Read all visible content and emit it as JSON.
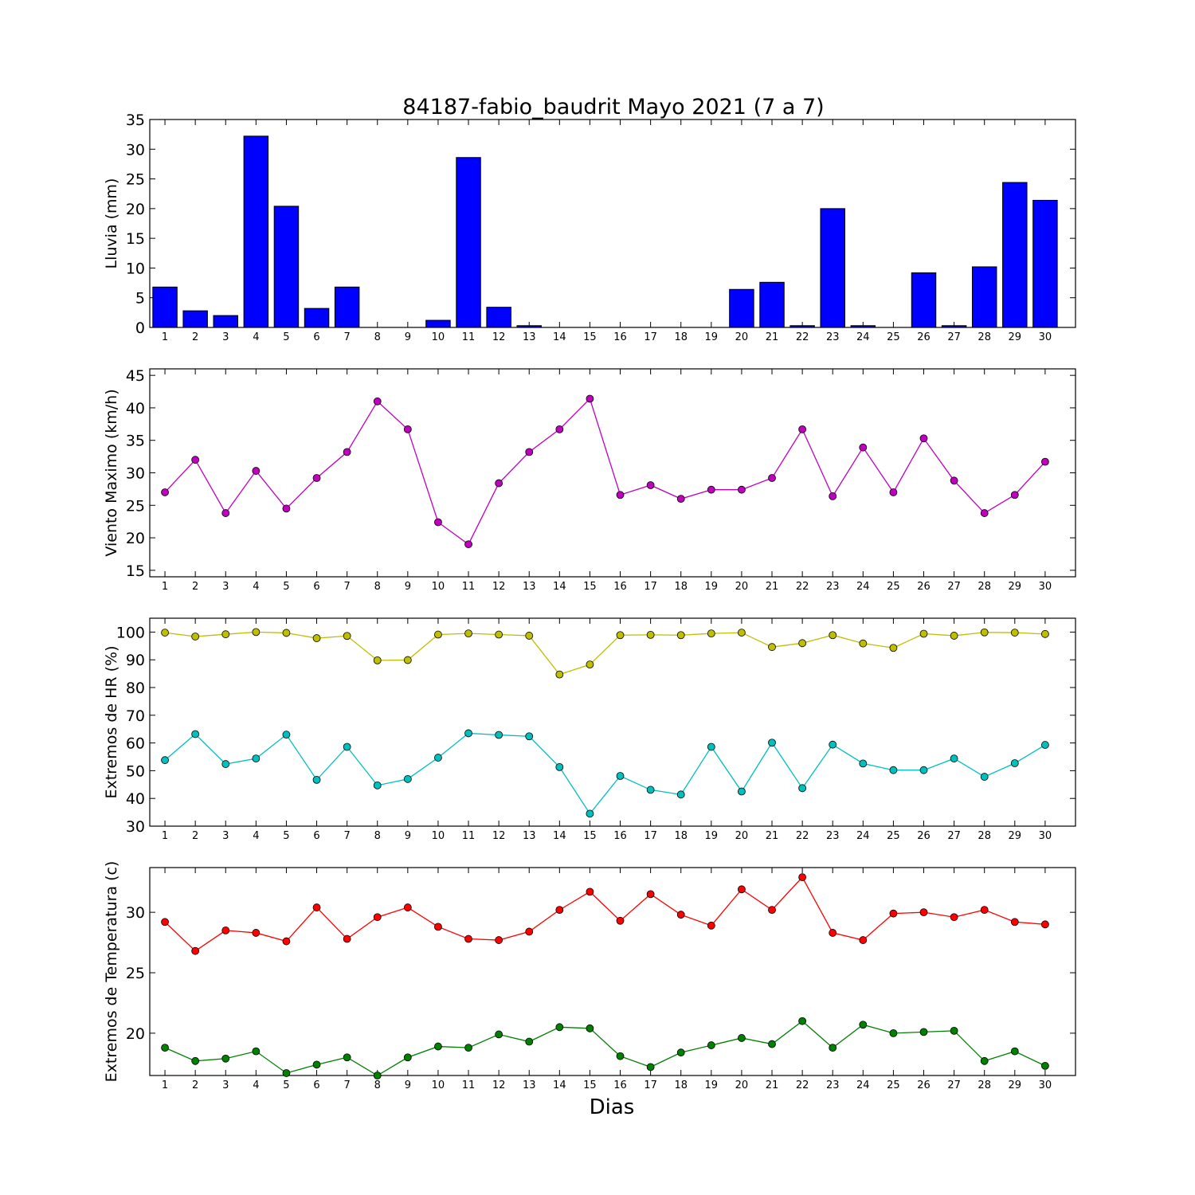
{
  "title": "84187-fabio_baudrit Mayo 2021  (7 a 7)",
  "xlabel": "Dias",
  "colors": {
    "rain": "#0000ff",
    "wind": "#bf00bf",
    "hr_max": "#bfbf00",
    "hr_min": "#00bfbf",
    "t_max": "#ff0000",
    "t_min": "#008000"
  },
  "chart_data": [
    {
      "type": "bar",
      "ylabel": "Lluvia (mm)",
      "ylim": [
        0,
        35
      ],
      "yticks": [
        0,
        5,
        10,
        15,
        20,
        25,
        30,
        35
      ],
      "categories": [
        "1",
        "2",
        "3",
        "4",
        "5",
        "6",
        "7",
        "8",
        "9",
        "10",
        "11",
        "12",
        "13",
        "14",
        "15",
        "16",
        "17",
        "18",
        "19",
        "20",
        "21",
        "22",
        "23",
        "24",
        "25",
        "26",
        "27",
        "28",
        "29",
        "30"
      ],
      "values": [
        6.8,
        2.8,
        2.0,
        32.2,
        20.4,
        3.2,
        6.8,
        0,
        0,
        1.2,
        28.6,
        3.4,
        0.3,
        0,
        0,
        0,
        0,
        0,
        0,
        6.4,
        7.6,
        0.3,
        20.0,
        0.3,
        0,
        9.2,
        0.3,
        10.2,
        24.4,
        21.4
      ]
    },
    {
      "type": "line",
      "ylabel": "Viento Maximo (km/h)",
      "ylim": [
        14,
        46
      ],
      "yticks": [
        15,
        20,
        25,
        30,
        35,
        40,
        45
      ],
      "x": [
        1,
        2,
        3,
        4,
        5,
        6,
        7,
        8,
        9,
        10,
        11,
        12,
        13,
        14,
        15,
        16,
        17,
        18,
        19,
        20,
        21,
        22,
        23,
        24,
        25,
        26,
        27,
        28,
        29,
        30
      ],
      "series": [
        {
          "color": "#bf00bf",
          "values": [
            27.0,
            32.0,
            23.8,
            30.3,
            24.5,
            29.2,
            33.2,
            41.0,
            36.7,
            22.4,
            19.0,
            28.4,
            33.2,
            36.7,
            41.4,
            26.6,
            28.1,
            26.0,
            27.4,
            27.4,
            29.2,
            36.7,
            26.4,
            33.9,
            27.0,
            35.3,
            28.8,
            23.8,
            26.6,
            31.7
          ]
        }
      ]
    },
    {
      "type": "line",
      "ylabel": "Extremos de HR (%)",
      "ylim": [
        30,
        105
      ],
      "yticks": [
        30,
        40,
        50,
        60,
        70,
        80,
        90,
        100
      ],
      "x": [
        1,
        2,
        3,
        4,
        5,
        6,
        7,
        8,
        9,
        10,
        11,
        12,
        13,
        14,
        15,
        16,
        17,
        18,
        19,
        20,
        21,
        22,
        23,
        24,
        25,
        26,
        27,
        28,
        29,
        30
      ],
      "series": [
        {
          "color": "#bfbf00",
          "values": [
            99.8,
            98.4,
            99.2,
            100,
            99.7,
            97.8,
            98.6,
            89.8,
            89.9,
            99.1,
            99.5,
            99.1,
            98.7,
            84.7,
            88.3,
            98.9,
            99.0,
            98.9,
            99.5,
            99.8,
            94.6,
            96.0,
            98.9,
            95.9,
            94.3,
            99.4,
            98.7,
            99.9,
            99.8,
            99.3
          ]
        },
        {
          "color": "#00bfbf",
          "values": [
            53.8,
            63.2,
            52.4,
            54.4,
            63.0,
            46.7,
            58.6,
            44.7,
            47.0,
            54.7,
            63.5,
            62.9,
            62.4,
            51.3,
            34.5,
            48.1,
            43.1,
            41.4,
            58.6,
            42.5,
            60.1,
            43.7,
            59.4,
            52.6,
            50.2,
            50.2,
            54.4,
            47.8,
            52.7,
            59.3
          ]
        }
      ]
    },
    {
      "type": "line",
      "ylabel": "Extremos de Temperatura (c)",
      "ylim": [
        16.5,
        33.7
      ],
      "yticks": [
        20,
        25,
        30
      ],
      "x": [
        1,
        2,
        3,
        4,
        5,
        6,
        7,
        8,
        9,
        10,
        11,
        12,
        13,
        14,
        15,
        16,
        17,
        18,
        19,
        20,
        21,
        22,
        23,
        24,
        25,
        26,
        27,
        28,
        29,
        30
      ],
      "series": [
        {
          "color": "#ff0000",
          "values": [
            29.2,
            26.8,
            28.5,
            28.3,
            27.6,
            30.4,
            27.8,
            29.6,
            30.4,
            28.8,
            27.8,
            27.7,
            28.4,
            30.2,
            31.7,
            29.3,
            31.5,
            29.8,
            28.9,
            31.9,
            30.2,
            32.9,
            28.3,
            27.7,
            29.9,
            30.0,
            29.6,
            30.2,
            29.2,
            29.0
          ]
        },
        {
          "color": "#008000",
          "values": [
            18.8,
            17.7,
            17.9,
            18.5,
            16.7,
            17.4,
            18.0,
            16.5,
            18.0,
            18.9,
            18.8,
            19.9,
            19.3,
            20.5,
            20.4,
            18.1,
            17.2,
            18.4,
            19.0,
            19.6,
            19.1,
            21.0,
            18.8,
            20.7,
            20.0,
            20.1,
            20.2,
            17.7,
            18.5,
            17.3
          ]
        }
      ]
    }
  ]
}
